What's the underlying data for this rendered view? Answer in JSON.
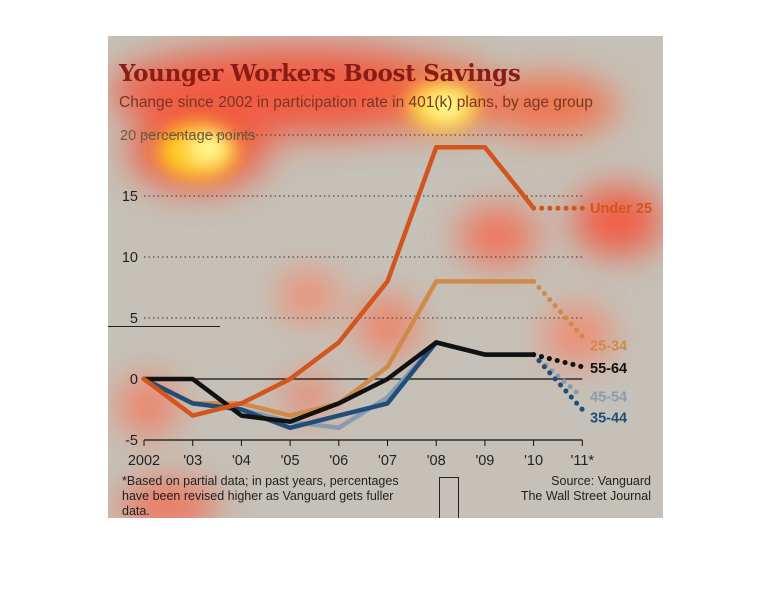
{
  "chart_data": {
    "type": "line",
    "title": "Younger Workers Boost Savings",
    "subtitle": "Change since 2002 in participation rate in 401(k) plans, by age group",
    "y_unit": "20 percentage points",
    "x": [
      "2002",
      "'03",
      "'04",
      "'05",
      "'06",
      "'07",
      "'08",
      "'09",
      "'10",
      "'11*"
    ],
    "ylim": [
      -5,
      20
    ],
    "yticks": [
      "-5",
      "0",
      "5",
      "10",
      "15"
    ],
    "grid": "dotted horizontal",
    "series": [
      {
        "name": "Under 25",
        "color": "#d2551e",
        "values": [
          0,
          -3,
          -2,
          0,
          3,
          8,
          19,
          19,
          14,
          14
        ],
        "dotted_from": 8
      },
      {
        "name": "25-34",
        "color": "#d08a48",
        "values": [
          0,
          -2,
          -2,
          -3,
          -2,
          1,
          8,
          8,
          8,
          3.5
        ],
        "dotted_from": 8
      },
      {
        "name": "55-64",
        "color": "#111111",
        "values": [
          0,
          0,
          -3,
          -3.5,
          -2,
          0,
          3,
          2,
          2,
          1
        ],
        "dotted_from": 8
      },
      {
        "name": "45-54",
        "color": "#8a9bae",
        "values": [
          0,
          -2,
          -2.5,
          -3.5,
          -4,
          -1.5,
          3,
          2,
          2,
          -1.5
        ],
        "dotted_from": 8
      },
      {
        "name": "35-44",
        "color": "#1f4e79",
        "values": [
          0,
          -2,
          -2.5,
          -4,
          -3,
          -2,
          3,
          2,
          2,
          -2.5
        ],
        "dotted_from": 8
      }
    ],
    "footnote": "*Based on partial data; in past years, percentages have been revised higher as Vanguard gets fuller data.",
    "source_line1": "Source: Vanguard",
    "source_line2": "The Wall Street Journal"
  }
}
